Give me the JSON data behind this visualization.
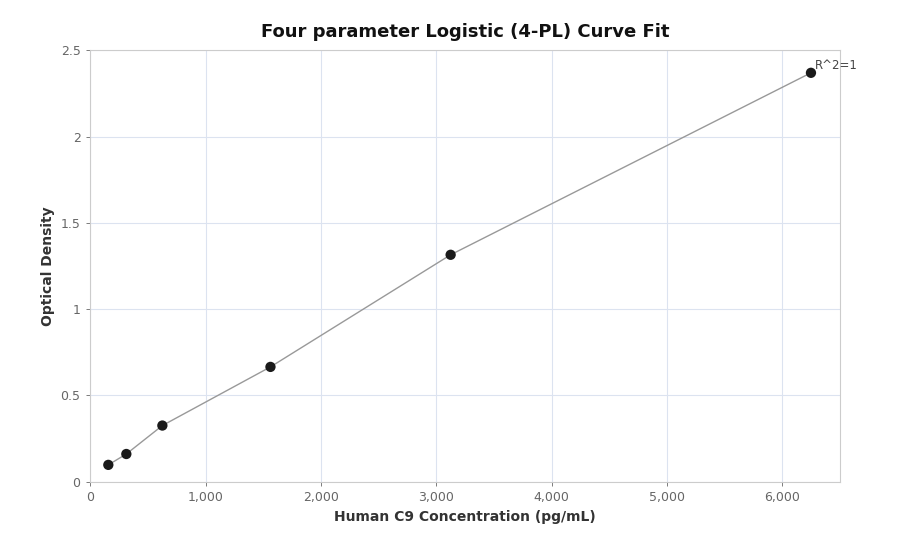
{
  "title": "Four parameter Logistic (4-PL) Curve Fit",
  "xlabel": "Human C9 Concentration (pg/mL)",
  "ylabel": "Optical Density",
  "x_data": [
    156.25,
    312.5,
    625,
    1562.5,
    3125,
    6250
  ],
  "y_data": [
    0.097,
    0.16,
    0.325,
    0.665,
    1.315,
    2.37
  ],
  "xlim": [
    0,
    6500
  ],
  "ylim": [
    0,
    2.5
  ],
  "xticks": [
    0,
    1000,
    2000,
    3000,
    4000,
    5000,
    6000
  ],
  "xtick_labels": [
    "0",
    "1,000",
    "2,000",
    "3,000",
    "4,000",
    "5,000",
    "6,000"
  ],
  "yticks": [
    0,
    0.5,
    1.0,
    1.5,
    2.0,
    2.5
  ],
  "ytick_labels": [
    "0",
    "0.5",
    "1",
    "1.5",
    "2",
    "2.5"
  ],
  "marker_color": "#1a1a1a",
  "line_color": "#999999",
  "grid_color": "#dce3f0",
  "background_color": "#ffffff",
  "spine_color": "#cccccc",
  "r_squared_text": "R^2=1",
  "title_fontsize": 13,
  "label_fontsize": 10,
  "tick_fontsize": 9,
  "annotation_fontsize": 8.5
}
